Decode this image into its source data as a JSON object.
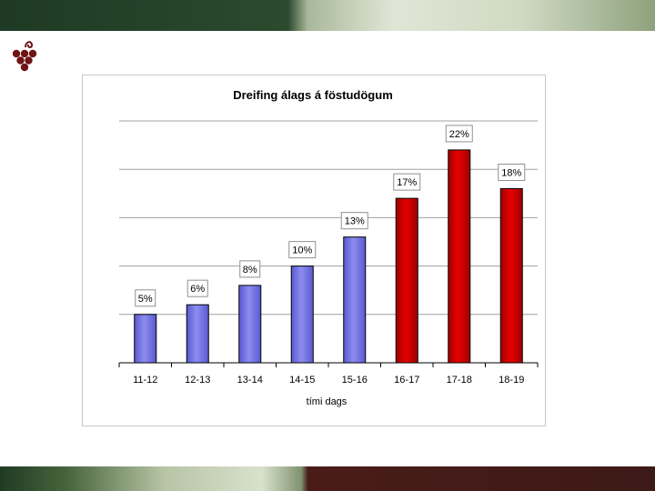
{
  "colors": {
    "bar_blue": "#8c8cf0",
    "bar_red": "#e60000",
    "logo": "#6e1414"
  },
  "logo_icon": "grape-cluster-icon",
  "chart_data": {
    "type": "bar",
    "title": "Dreifing álags á föstudögum",
    "xlabel": "tími dags",
    "ylabel": "",
    "categories": [
      "11-12",
      "12-13",
      "13-14",
      "14-15",
      "15-16",
      "16-17",
      "17-18",
      "18-19"
    ],
    "values": [
      5,
      6,
      8,
      10,
      13,
      17,
      22,
      18
    ],
    "value_labels": [
      "5%",
      "6%",
      "8%",
      "10%",
      "13%",
      "17%",
      "22%",
      "18%"
    ],
    "bar_colors": [
      "blue",
      "blue",
      "blue",
      "blue",
      "blue",
      "red",
      "red",
      "red"
    ],
    "ylim": [
      0,
      25
    ],
    "grid": true,
    "legend": "none"
  }
}
